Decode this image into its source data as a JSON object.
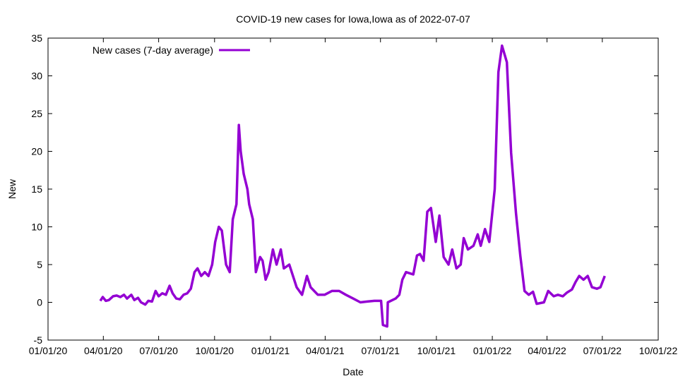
{
  "chart_data": {
    "type": "line",
    "title": "COVID-19 new cases for Iowa,Iowa as of 2022-07-07",
    "xlabel": "Date",
    "ylabel": "New",
    "x_origin": "2020-01-01",
    "x_unit": "days since 2020-01-01",
    "xlim": [
      0,
      1004
    ],
    "ylim": [
      -5,
      35
    ],
    "yticks": [
      -5,
      0,
      5,
      10,
      15,
      20,
      25,
      30,
      35
    ],
    "xticks": [
      {
        "day": 0,
        "label": "01/01/20"
      },
      {
        "day": 91,
        "label": "04/01/20"
      },
      {
        "day": 182,
        "label": "07/01/20"
      },
      {
        "day": 274,
        "label": "10/01/20"
      },
      {
        "day": 366,
        "label": "01/01/21"
      },
      {
        "day": 456,
        "label": "04/01/21"
      },
      {
        "day": 547,
        "label": "07/01/21"
      },
      {
        "day": 639,
        "label": "10/01/21"
      },
      {
        "day": 731,
        "label": "01/01/22"
      },
      {
        "day": 821,
        "label": "04/01/22"
      },
      {
        "day": 912,
        "label": "07/01/22"
      },
      {
        "day": 1004,
        "label": "10/01/22"
      }
    ],
    "grid": false,
    "legend_position": "top-left",
    "series": [
      {
        "name": "New cases (7-day average)",
        "color": "#9400d3",
        "x": [
          86,
          90,
          95,
          100,
          107,
          113,
          119,
          125,
          130,
          137,
          142,
          148,
          153,
          160,
          165,
          171,
          177,
          182,
          188,
          194,
          200,
          205,
          211,
          217,
          223,
          229,
          235,
          241,
          246,
          252,
          258,
          264,
          270,
          275,
          281,
          286,
          293,
          299,
          304,
          310,
          314,
          317,
          322,
          328,
          331,
          337,
          342,
          349,
          353,
          358,
          363,
          370,
          376,
          383,
          388,
          397,
          409,
          418,
          426,
          432,
          444,
          455,
          467,
          479,
          490,
          502,
          514,
          525,
          537,
          548,
          551,
          558,
          559,
          572,
          578,
          583,
          589,
          601,
          607,
          612,
          618,
          624,
          630,
          638,
          644,
          651,
          659,
          665,
          672,
          679,
          684,
          691,
          700,
          707,
          712,
          719,
          726,
          735,
          741,
          747,
          755,
          762,
          770,
          777,
          784,
          791,
          798,
          804,
          816,
          823,
          832,
          839,
          847,
          854,
          862,
          868,
          874,
          881,
          888,
          895,
          903,
          909,
          916
        ],
        "y": [
          0.2,
          0.7,
          0.2,
          0.3,
          0.8,
          0.9,
          0.7,
          1.0,
          0.5,
          1.0,
          0.3,
          0.6,
          0.0,
          -0.3,
          0.2,
          0.1,
          1.5,
          0.8,
          1.2,
          1.0,
          2.2,
          1.2,
          0.5,
          0.4,
          1.0,
          1.2,
          1.8,
          4.0,
          4.5,
          3.5,
          4.0,
          3.5,
          5.0,
          8.0,
          10.0,
          9.5,
          5.0,
          4.0,
          11.0,
          13.0,
          23.5,
          20.0,
          17.0,
          15.0,
          13.0,
          11.0,
          4.0,
          6.0,
          5.5,
          3.0,
          4.0,
          7.0,
          5.0,
          7.0,
          4.5,
          5.0,
          2.0,
          1.0,
          3.5,
          2.0,
          1.0,
          1.0,
          1.5,
          1.5,
          1.0,
          0.5,
          0.0,
          0.1,
          0.2,
          0.2,
          -3.0,
          -3.2,
          0.0,
          0.5,
          1.0,
          3.0,
          4.0,
          3.7,
          6.2,
          6.4,
          5.5,
          12.0,
          12.5,
          8.0,
          11.5,
          6.0,
          5.0,
          7.0,
          4.5,
          5.0,
          8.5,
          7.0,
          7.5,
          9.0,
          7.5,
          9.7,
          8.0,
          15.0,
          30.5,
          34.0,
          31.8,
          19.8,
          11.8,
          6.2,
          1.5,
          1.0,
          1.4,
          -0.2,
          0.0,
          1.5,
          0.8,
          1.0,
          0.8,
          1.3,
          1.7,
          2.7,
          3.5,
          3.0,
          3.5,
          2.0,
          1.8,
          2.0,
          3.5
        ]
      }
    ]
  }
}
